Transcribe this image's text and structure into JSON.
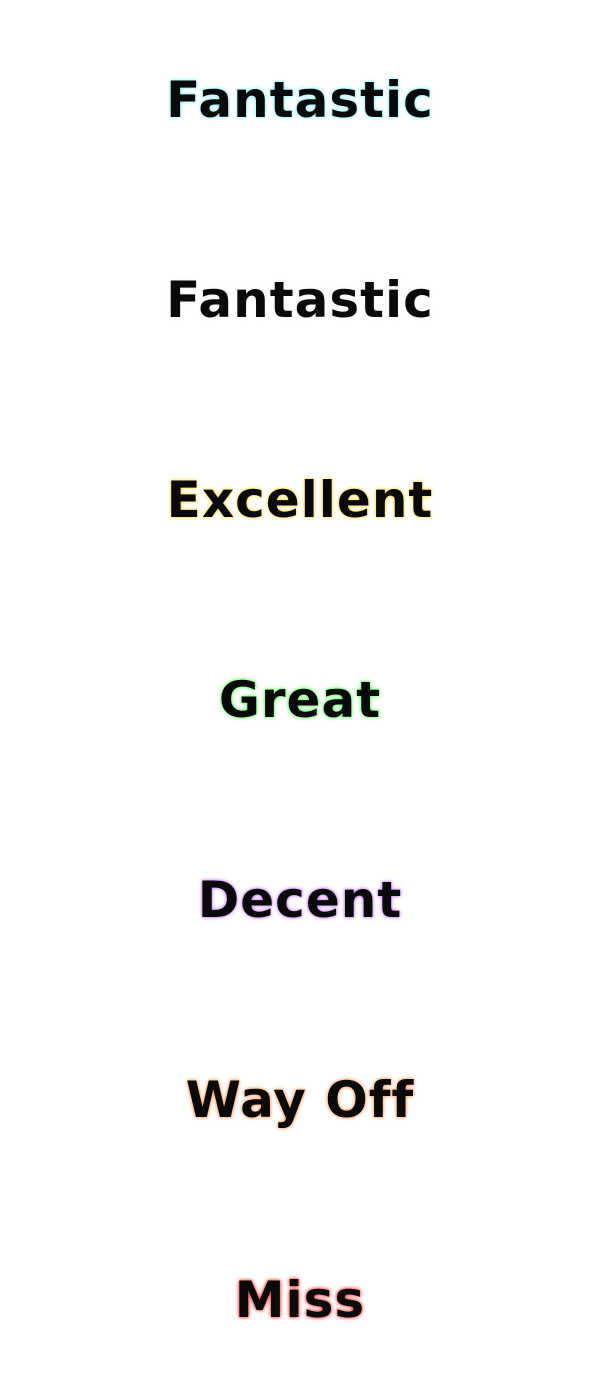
{
  "judgments": [
    {
      "label": "Fantastic",
      "glow": "#8ff4ff"
    },
    {
      "label": "Fantastic",
      "glow": "#ffffff"
    },
    {
      "label": "Excellent",
      "glow": "#ffd84a"
    },
    {
      "label": "Great",
      "glow": "#5cff5c"
    },
    {
      "label": "Decent",
      "glow": "#c77cff"
    },
    {
      "label": "Way Off",
      "glow": "#ff9a5c"
    },
    {
      "label": "Miss",
      "glow": "#ff3b3b"
    }
  ],
  "background": "#ffffff",
  "text_color": "#0a0a0a"
}
